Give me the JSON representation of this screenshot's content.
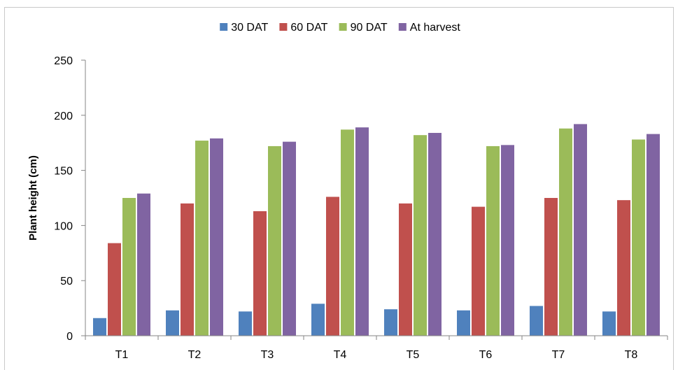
{
  "chart_data": {
    "type": "bar",
    "title": "",
    "xlabel": "",
    "ylabel": "Plant height (cm)",
    "ylim": [
      0,
      250
    ],
    "yticks": [
      0,
      50,
      100,
      150,
      200,
      250
    ],
    "grid": false,
    "legend_position": "top-center",
    "categories": [
      "T1",
      "T2",
      "T3",
      "T4",
      "T5",
      "T6",
      "T7",
      "T8"
    ],
    "series": [
      {
        "name": "30 DAT",
        "color": "#4F81BD",
        "values": [
          16,
          23,
          22,
          29,
          24,
          23,
          27,
          22
        ]
      },
      {
        "name": "60 DAT",
        "color": "#C0504D",
        "values": [
          84,
          120,
          113,
          126,
          120,
          117,
          125,
          123
        ]
      },
      {
        "name": "90 DAT",
        "color": "#9BBB59",
        "values": [
          125,
          177,
          172,
          187,
          182,
          172,
          188,
          178
        ]
      },
      {
        "name": "At harvest",
        "color": "#8064A2",
        "values": [
          129,
          179,
          176,
          189,
          184,
          173,
          192,
          183
        ]
      }
    ]
  }
}
